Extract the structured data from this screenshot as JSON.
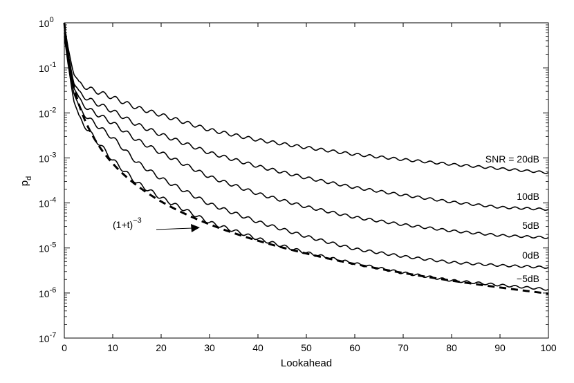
{
  "chart_data": {
    "type": "line",
    "xlabel": "Lookahead",
    "ylabel_main": "p",
    "ylabel_sub": "d",
    "x_ticks": [
      "0",
      "10",
      "20",
      "30",
      "40",
      "50",
      "60",
      "70",
      "80",
      "90",
      "100"
    ],
    "y_ticks": [
      {
        "base": "10",
        "exp": "0"
      },
      {
        "base": "10",
        "exp": "-1"
      },
      {
        "base": "10",
        "exp": "-2"
      },
      {
        "base": "10",
        "exp": "-3"
      },
      {
        "base": "10",
        "exp": "-4"
      },
      {
        "base": "10",
        "exp": "-5"
      },
      {
        "base": "10",
        "exp": "-6"
      },
      {
        "base": "10",
        "exp": "-7"
      }
    ],
    "xlim": [
      0,
      100
    ],
    "ylim": [
      1e-07,
      1
    ],
    "yscale": "log",
    "grid": false,
    "series": [
      {
        "name": "SNR = 20dB",
        "label": "SNR = 20dB",
        "x": [
          0,
          1,
          2,
          3,
          5,
          10,
          15,
          20,
          30,
          40,
          50,
          60,
          70,
          80,
          90,
          100
        ],
        "values": [
          0.9,
          0.2,
          0.08,
          0.045,
          0.035,
          0.022,
          0.013,
          0.009,
          0.0042,
          0.0025,
          0.0017,
          0.0012,
          0.00092,
          0.00072,
          0.00058,
          0.00047
        ]
      },
      {
        "name": "10dB",
        "label": "10dB",
        "x": [
          0,
          1,
          2,
          3,
          5,
          10,
          15,
          20,
          30,
          40,
          50,
          60,
          70,
          80,
          90,
          100
        ],
        "values": [
          0.8,
          0.15,
          0.05,
          0.028,
          0.02,
          0.011,
          0.0055,
          0.0033,
          0.0013,
          0.00065,
          0.00036,
          0.00022,
          0.00015,
          0.000105,
          8e-05,
          7.2e-05
        ]
      },
      {
        "name": "5dB",
        "label": "5dB",
        "x": [
          0,
          1,
          2,
          3,
          5,
          10,
          15,
          20,
          30,
          40,
          50,
          60,
          70,
          80,
          90,
          100
        ],
        "values": [
          0.7,
          0.12,
          0.04,
          0.02,
          0.012,
          0.006,
          0.0025,
          0.0013,
          0.00038,
          0.00016,
          8.2e-05,
          4.8e-05,
          3.3e-05,
          2.4e-05,
          1.9e-05,
          1.7e-05
        ]
      },
      {
        "name": "0dB",
        "label": "0dB",
        "x": [
          0,
          1,
          2,
          3,
          5,
          10,
          15,
          20,
          30,
          40,
          50,
          60,
          70,
          80,
          90,
          100
        ],
        "values": [
          0.6,
          0.1,
          0.03,
          0.013,
          0.0075,
          0.0028,
          0.0008,
          0.00035,
          9.5e-05,
          3.8e-05,
          1.8e-05,
          9.5e-06,
          6.5e-06,
          4.8e-06,
          4.1e-06,
          3.7e-06
        ]
      },
      {
        "name": "−5dB",
        "label": "−5dB",
        "x": [
          0,
          1,
          2,
          3,
          5,
          10,
          15,
          20,
          30,
          40,
          50,
          60,
          70,
          80,
          90,
          100
        ],
        "values": [
          0.5,
          0.08,
          0.02,
          0.008,
          0.004,
          0.0009,
          0.00028,
          0.00013,
          3.7e-05,
          1.6e-05,
          7.8e-06,
          4.5e-06,
          2.8e-06,
          1.9e-06,
          1.5e-06,
          1.2e-06
        ]
      }
    ],
    "reference": {
      "label_base": "(1+t)",
      "label_exp": "−3",
      "style": "dashed",
      "formula": "(1+t)^-3"
    }
  }
}
